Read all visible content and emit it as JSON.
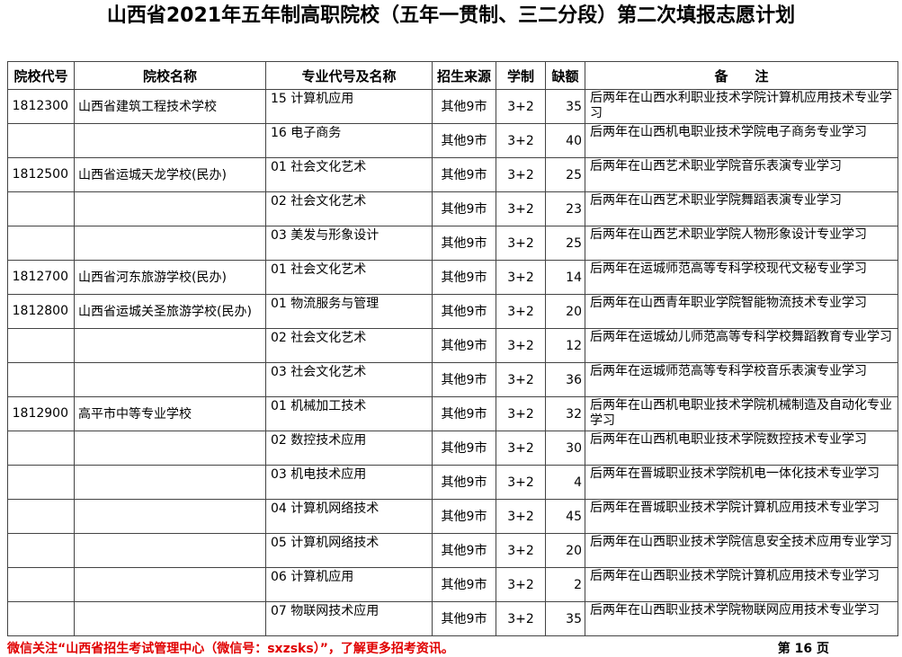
{
  "title": "山西省2021年五年制高职院校（五年一贯制、三二分段）第二次填报志愿计划",
  "headers": [
    "院校代号",
    "院校名称",
    "专业代号及名称",
    "招生来源",
    "学制",
    "缺额",
    "备　　注"
  ],
  "rows": [
    {
      "code": "1812300",
      "school": "山西省建筑工程技术学校",
      "major": "15 计算机应用",
      "source": "其他9市",
      "years": "3+2",
      "quota": "35",
      "note": "后两年在山西水利职业技术学院计算机应用技术专业学习"
    },
    {
      "code": "",
      "school": "",
      "major": "16 电子商务",
      "source": "其他9市",
      "years": "3+2",
      "quota": "40",
      "note": "后两年在山西机电职业技术学院电子商务专业学习"
    },
    {
      "code": "1812500",
      "school": "山西省运城天龙学校(民办)",
      "major": "01 社会文化艺术",
      "source": "其他9市",
      "years": "3+2",
      "quota": "25",
      "note": "后两年在山西艺术职业学院音乐表演专业学习"
    },
    {
      "code": "",
      "school": "",
      "major": "02 社会文化艺术",
      "source": "其他9市",
      "years": "3+2",
      "quota": "23",
      "note": "后两年在山西艺术职业学院舞蹈表演专业学习"
    },
    {
      "code": "",
      "school": "",
      "major": "03 美发与形象设计",
      "source": "其他9市",
      "years": "3+2",
      "quota": "25",
      "note": "后两年在山西艺术职业学院人物形象设计专业学习"
    },
    {
      "code": "1812700",
      "school": "山西省河东旅游学校(民办)",
      "major": "01 社会文化艺术",
      "source": "其他9市",
      "years": "3+2",
      "quota": "14",
      "note": "后两年在运城师范高等专科学校现代文秘专业学习"
    },
    {
      "code": "1812800",
      "school": "山西省运城关圣旅游学校(民办)",
      "major": "01 物流服务与管理",
      "source": "其他9市",
      "years": "3+2",
      "quota": "20",
      "note": "后两年在山西青年职业学院智能物流技术专业学习"
    },
    {
      "code": "",
      "school": "",
      "major": "02 社会文化艺术",
      "source": "其他9市",
      "years": "3+2",
      "quota": "12",
      "note": "后两年在运城幼儿师范高等专科学校舞蹈教育专业学习"
    },
    {
      "code": "",
      "school": "",
      "major": "03 社会文化艺术",
      "source": "其他9市",
      "years": "3+2",
      "quota": "36",
      "note": "后两年在运城师范高等专科学校音乐表演专业学习"
    },
    {
      "code": "1812900",
      "school": "高平市中等专业学校",
      "major": "01 机械加工技术",
      "source": "其他9市",
      "years": "3+2",
      "quota": "32",
      "note": "后两年在山西机电职业技术学院机械制造及自动化专业学习"
    },
    {
      "code": "",
      "school": "",
      "major": "02 数控技术应用",
      "source": "其他9市",
      "years": "3+2",
      "quota": "30",
      "note": "后两年在山西机电职业技术学院数控技术专业学习"
    },
    {
      "code": "",
      "school": "",
      "major": "03 机电技术应用",
      "source": "其他9市",
      "years": "3+2",
      "quota": "4",
      "note": "后两年在晋城职业技术学院机电一体化技术专业学习"
    },
    {
      "code": "",
      "school": "",
      "major": "04 计算机网络技术",
      "source": "其他9市",
      "years": "3+2",
      "quota": "45",
      "note": "后两年在晋城职业技术学院计算机应用技术专业学习"
    },
    {
      "code": "",
      "school": "",
      "major": "05 计算机网络技术",
      "source": "其他9市",
      "years": "3+2",
      "quota": "20",
      "note": "后两年在山西职业技术学院信息安全技术应用专业学习"
    },
    {
      "code": "",
      "school": "",
      "major": "06 计算机应用",
      "source": "其他9市",
      "years": "3+2",
      "quota": "2",
      "note": "后两年在山西职业技术学院计算机应用技术专业学习"
    },
    {
      "code": "",
      "school": "",
      "major": "07 物联网技术应用",
      "source": "其他9市",
      "years": "3+2",
      "quota": "35",
      "note": "后两年在山西职业技术学院物联网应用技术专业学习"
    }
  ],
  "footer": {
    "notice": "微信关注“山西省招生考试管理中心（微信号：sxzsks）”，了解更多招考资讯。",
    "page": "第 16 页"
  },
  "colors": {
    "notice": "#e00000"
  }
}
